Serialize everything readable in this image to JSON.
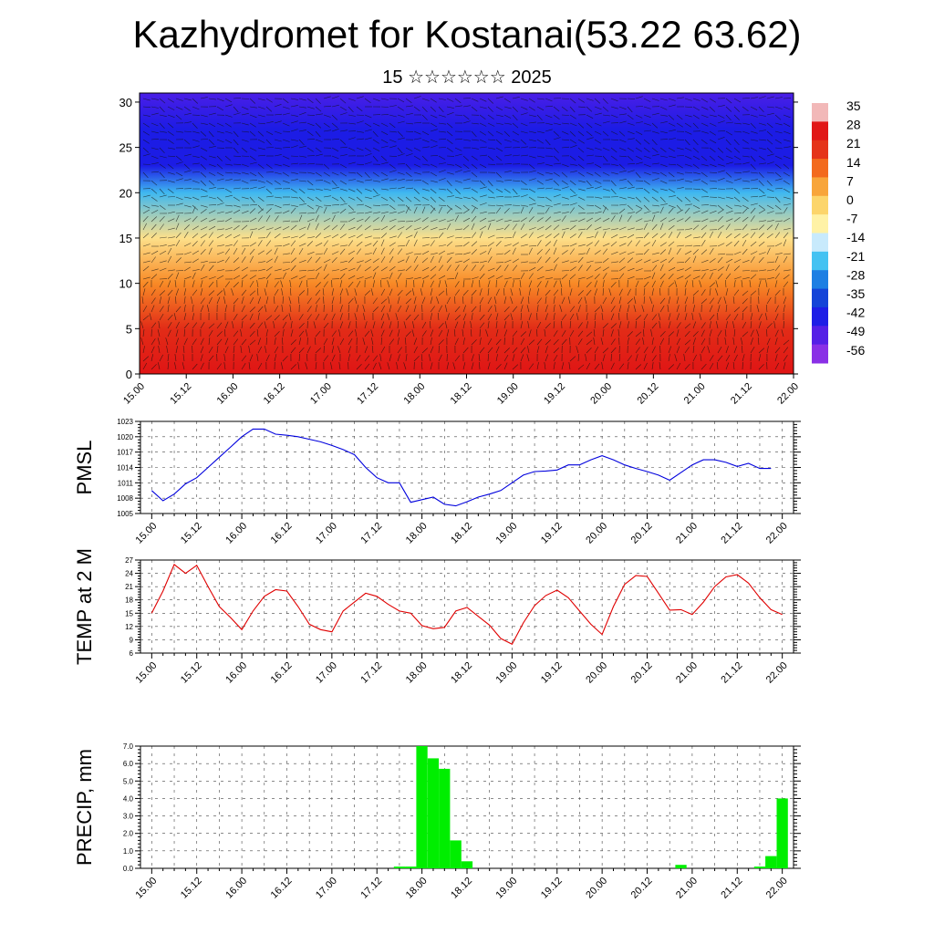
{
  "header": {
    "title": "Kazhydromet for Kostanai(53.22 63.62)",
    "subtitle": "15 ☆☆☆☆☆☆ 2025"
  },
  "x_ticks": [
    "15.00",
    "15.12",
    "16.00",
    "16.12",
    "17.00",
    "17.12",
    "18.00",
    "18.12",
    "19.00",
    "19.12",
    "20.00",
    "20.12",
    "21.00",
    "21.12",
    "22.00"
  ],
  "chart_data": [
    {
      "type": "heatmap",
      "title": "",
      "ylabel": "",
      "y_ticks": [
        0,
        5,
        10,
        15,
        20,
        25,
        30
      ],
      "ylim": [
        0,
        31
      ],
      "colorbar_labels": [
        "35",
        "28",
        "21",
        "14",
        "7",
        "0",
        "-7",
        "-14",
        "-21",
        "-28",
        "-35",
        "-42",
        "-49",
        "-56"
      ],
      "colorbar_colors": [
        "#f2b8b8",
        "#e11717",
        "#e5341a",
        "#f36a1d",
        "#f8a53a",
        "#fcd56b",
        "#fff2a6",
        "#c8eafc",
        "#44c2f2",
        "#1e7fe3",
        "#1444d8",
        "#1e1ee6",
        "#5520e6",
        "#8a30e6"
      ],
      "temperature_profile": [
        {
          "level": 0,
          "value": 24
        },
        {
          "level": 5,
          "value": 16
        },
        {
          "level": 10,
          "value": 6
        },
        {
          "level": 15,
          "value": -8
        },
        {
          "level": 20,
          "value": -30
        },
        {
          "level": 23,
          "value": -52
        },
        {
          "level": 27,
          "value": -56
        },
        {
          "level": 31,
          "value": -60
        }
      ],
      "wind_barbs": "shown"
    },
    {
      "type": "line",
      "ylabel": "PMSL",
      "y_ticks": [
        1005,
        1008,
        1011,
        1014,
        1017,
        1020,
        1023
      ],
      "ylim": [
        1005,
        1023
      ],
      "line_color": "#0000dd",
      "x": [
        0,
        3,
        6,
        9,
        12,
        15,
        18,
        21,
        24,
        27,
        30,
        33,
        36,
        39,
        42,
        45,
        48,
        51,
        54,
        57,
        60,
        63,
        66,
        69,
        72,
        75,
        78,
        81,
        84,
        87,
        90,
        93,
        96,
        99,
        102,
        105,
        108,
        111,
        114,
        117,
        120,
        123,
        126,
        129,
        132,
        135,
        138,
        141,
        144,
        147,
        150,
        153,
        156,
        159,
        162,
        165,
        168
      ],
      "values": [
        1009.5,
        1007.5,
        1008.8,
        1010.8,
        1012,
        1014,
        1016,
        1018,
        1020,
        1021.5,
        1021.5,
        1020.5,
        1020.3,
        1020,
        1019.5,
        1019,
        1018.3,
        1017.5,
        1016.5,
        1014,
        1012,
        1011,
        1011,
        1007.2,
        1007.7,
        1008.2,
        1006.8,
        1006.5,
        1007.3,
        1008.2,
        1008.8,
        1009.5,
        1011,
        1012.5,
        1013.2,
        1013.3,
        1013.5,
        1014.5,
        1014.5,
        1015.5,
        1016.3,
        1015.5,
        1014.5,
        1013.8,
        1013.2,
        1012.5,
        1011.5,
        1013,
        1014.5,
        1015.5,
        1015.5,
        1015,
        1014.2,
        1014.8,
        1013.8,
        1013.8,
        null
      ],
      "xlim": [
        -3,
        171
      ]
    },
    {
      "type": "line",
      "ylabel": "TEMP at 2 M",
      "y_ticks": [
        6,
        9,
        12,
        15,
        18,
        21,
        24,
        27
      ],
      "ylim": [
        6,
        27
      ],
      "line_color": "#e00000",
      "x": [
        0,
        3,
        6,
        9,
        12,
        15,
        18,
        21,
        24,
        27,
        30,
        33,
        36,
        39,
        42,
        45,
        48,
        51,
        54,
        57,
        60,
        63,
        66,
        69,
        72,
        75,
        78,
        81,
        84,
        87,
        90,
        93,
        96,
        99,
        102,
        105,
        108,
        111,
        114,
        117,
        120,
        123,
        126,
        129,
        132,
        135,
        138,
        141,
        144,
        147,
        150,
        153,
        156,
        159,
        162,
        165,
        168
      ],
      "values": [
        15,
        20,
        26,
        24,
        25.8,
        21,
        16.5,
        14,
        11.3,
        15.5,
        18.8,
        20.3,
        20,
        16.5,
        12.5,
        11.3,
        10.8,
        15.5,
        17.5,
        19.5,
        18.8,
        17,
        15.5,
        15,
        12.2,
        11.5,
        11.8,
        15.5,
        16.3,
        14.3,
        12.3,
        9.3,
        8,
        12.8,
        16.7,
        19,
        20.2,
        18.5,
        15.5,
        12.5,
        10.2,
        16.5,
        21.5,
        23.5,
        23.3,
        19.5,
        15.7,
        15.8,
        14.7,
        17.5,
        21,
        23.2,
        23.7,
        21.8,
        18.5,
        15.8,
        14.7
      ],
      "xlim": [
        -3,
        171
      ]
    },
    {
      "type": "bar",
      "ylabel": "PRECIP, mm",
      "y_ticks": [
        "0.0",
        "1.0",
        "2.0",
        "3.0",
        "4.0",
        "5.0",
        "6.0",
        "7.0"
      ],
      "ylim": [
        0,
        7
      ],
      "bar_color": "#00ee00",
      "x": [
        66,
        69,
        72,
        75,
        78,
        81,
        84,
        87,
        141,
        162,
        165,
        168
      ],
      "values": [
        0.1,
        0.1,
        7.0,
        6.3,
        5.7,
        1.6,
        0.4,
        0.0,
        0.2,
        0.1,
        0.7,
        4.0
      ],
      "xlim": [
        -3,
        171
      ]
    }
  ]
}
